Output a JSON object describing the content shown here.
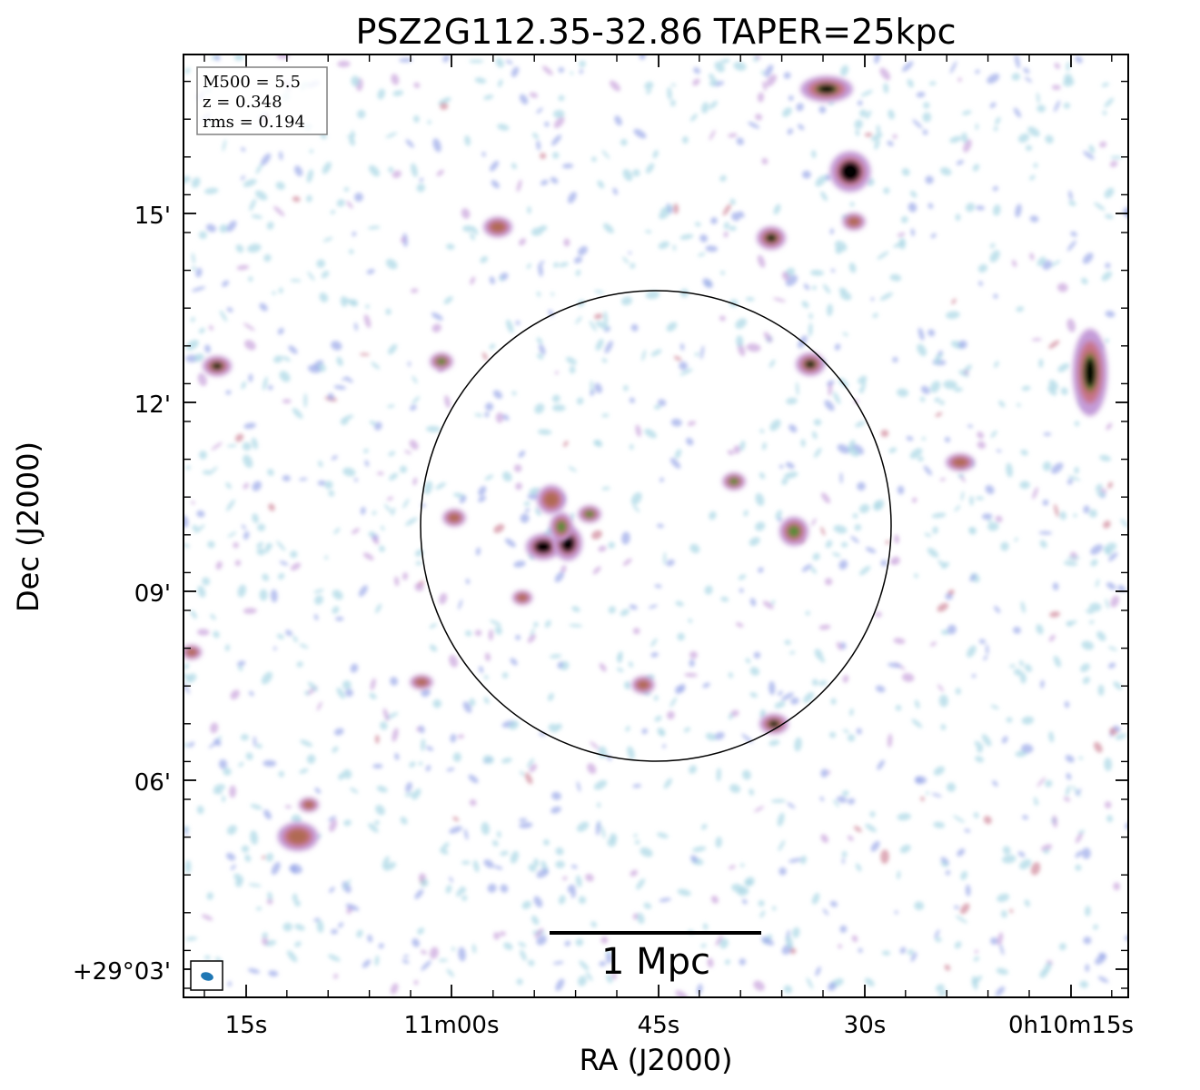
{
  "chart_data": {
    "type": "heatmap",
    "title": "PSZ2G112.35-32.86 TAPER=25kpc",
    "xlabel": "RA (J2000)",
    "ylabel": "Dec (J2000)",
    "x_ticks": [
      "15s",
      "11m00s",
      "45s",
      "30s",
      "0h10m15s"
    ],
    "y_ticks": [
      "+29°03'",
      "06'",
      "09'",
      "12'",
      "15'"
    ],
    "info_box": {
      "lines": [
        "M500 = 5.5",
        "z = 0.348",
        "rms = 0.194"
      ],
      "placement": "top-left"
    },
    "scalebar_label": "1 Mpc",
    "beam_color": "#1f77b4",
    "circle_color": "#000000",
    "colormap": [
      "#add8e6",
      "#9aa8e8",
      "#c49bd8",
      "#c8748a",
      "#b06a52",
      "#5a8a3a",
      "#000000"
    ]
  }
}
